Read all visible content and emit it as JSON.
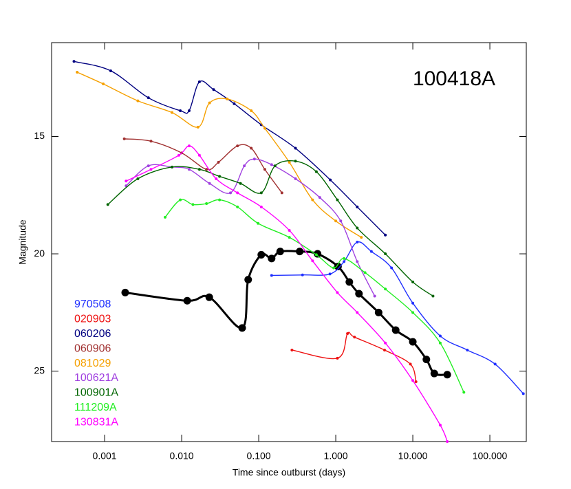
{
  "chart_data": {
    "type": "line",
    "x_label": "Time since outburst (days)",
    "y_label": "Magnitude",
    "xlog": true,
    "xlim": [
      0.000205,
      297
    ],
    "ylim": [
      28,
      11
    ],
    "xticks": [
      {
        "value": 0.001,
        "label": "0.001"
      },
      {
        "value": 0.01,
        "label": "0.010"
      },
      {
        "value": 0.1,
        "label": "0.100"
      },
      {
        "value": 1,
        "label": "1.000"
      },
      {
        "value": 10,
        "label": "10.000"
      },
      {
        "value": 100,
        "label": "100.000"
      }
    ],
    "yticks": [
      15,
      20,
      25
    ],
    "legend": "lower left",
    "series": [
      {
        "name": "100418A",
        "color": "#000000",
        "highlight": true,
        "x": [
          0.00185,
          0.0118,
          0.0228,
          0.061,
          0.073,
          0.108,
          0.147,
          0.19,
          0.34,
          0.58,
          1.07,
          1.5,
          2.0,
          3.6,
          6.0,
          10,
          15,
          19,
          28
        ],
        "values": [
          21.65,
          22.0,
          21.85,
          23.16,
          21.1,
          20.04,
          20.2,
          19.9,
          19.9,
          20.0,
          20.54,
          21.2,
          21.7,
          22.5,
          23.25,
          23.75,
          24.5,
          25.1,
          25.15
        ]
      },
      {
        "name": "970508",
        "color": "#1f2fff",
        "x": [
          0.147,
          0.37,
          0.84,
          1.28,
          1.9,
          2.9,
          5.3,
          10,
          22.7,
          51,
          117,
          272
        ],
        "values": [
          20.92,
          20.9,
          20.86,
          20.33,
          19.5,
          19.9,
          20.6,
          22.1,
          23.5,
          24.1,
          24.7,
          25.96
        ]
      },
      {
        "name": "020903",
        "color": "#ee1111",
        "x": [
          0.27,
          1.05,
          1.42,
          1.75,
          4.3,
          9.3,
          11
        ],
        "values": [
          24.1,
          24.45,
          23.4,
          23.55,
          24.1,
          24.7,
          25.45
        ]
      },
      {
        "name": "060206",
        "color": "#000080",
        "x": [
          0.0004,
          0.0012,
          0.0037,
          0.0096,
          0.0125,
          0.017,
          0.026,
          0.048,
          0.108,
          0.3,
          0.85,
          1.9,
          4.4
        ],
        "values": [
          11.8,
          12.2,
          13.35,
          13.9,
          13.9,
          12.67,
          13.0,
          13.6,
          14.5,
          15.5,
          16.85,
          18.0,
          19.2
        ]
      },
      {
        "name": "060906",
        "color": "#a03030",
        "x": [
          0.0018,
          0.004,
          0.01,
          0.021,
          0.03,
          0.053,
          0.08,
          0.12,
          0.2
        ],
        "values": [
          15.1,
          15.2,
          15.7,
          16.4,
          16.1,
          15.4,
          15.5,
          16.4,
          17.4
        ]
      },
      {
        "name": "081029",
        "color": "#f5a000",
        "x": [
          0.00044,
          0.00096,
          0.0027,
          0.0075,
          0.0163,
          0.023,
          0.039,
          0.08,
          0.12,
          0.25,
          0.5,
          1.0,
          2.15
        ],
        "values": [
          12.26,
          12.76,
          13.48,
          13.98,
          14.6,
          13.57,
          13.4,
          13.9,
          14.65,
          16.1,
          17.7,
          18.6,
          19.3
        ]
      },
      {
        "name": "100621A",
        "color": "#a040e0",
        "x": [
          0.0019,
          0.0037,
          0.0075,
          0.0125,
          0.023,
          0.043,
          0.065,
          0.088,
          0.147,
          0.3,
          0.62,
          1.16,
          1.9,
          3.2
        ],
        "values": [
          17.1,
          16.25,
          16.3,
          16.4,
          17.0,
          17.4,
          16.25,
          15.96,
          16.2,
          16.8,
          17.6,
          18.6,
          20.33,
          21.8
        ]
      },
      {
        "name": "100901A",
        "color": "#006400",
        "x": [
          0.0011,
          0.0027,
          0.0075,
          0.017,
          0.031,
          0.058,
          0.108,
          0.163,
          0.3,
          0.56,
          1.05,
          1.9,
          4.4,
          10,
          18.3
        ],
        "values": [
          17.9,
          16.8,
          16.3,
          16.4,
          16.7,
          17.0,
          17.4,
          16.25,
          16.05,
          16.5,
          17.7,
          18.9,
          20.0,
          21.2,
          21.8
        ]
      },
      {
        "name": "111209A",
        "color": "#22ee22",
        "x": [
          0.0061,
          0.0096,
          0.014,
          0.021,
          0.031,
          0.053,
          0.098,
          0.25,
          0.56,
          0.94,
          1.28,
          2.4,
          4.4,
          10,
          22.7,
          46
        ],
        "values": [
          18.44,
          17.7,
          17.9,
          17.86,
          17.7,
          18.0,
          18.7,
          19.3,
          20.04,
          20.6,
          20.2,
          20.8,
          21.5,
          22.5,
          23.8,
          25.9
        ]
      },
      {
        "name": "130831A",
        "color": "#ff00ff",
        "x": [
          0.0019,
          0.004,
          0.0092,
          0.0125,
          0.017,
          0.028,
          0.053,
          0.108,
          0.25,
          0.5,
          1.05,
          1.9,
          4.4,
          10,
          22.7,
          28
        ],
        "values": [
          16.9,
          16.4,
          15.8,
          15.4,
          15.8,
          16.8,
          17.4,
          18.0,
          19.0,
          20.3,
          21.65,
          22.5,
          23.8,
          25.4,
          27.3,
          28.0
        ]
      }
    ]
  }
}
